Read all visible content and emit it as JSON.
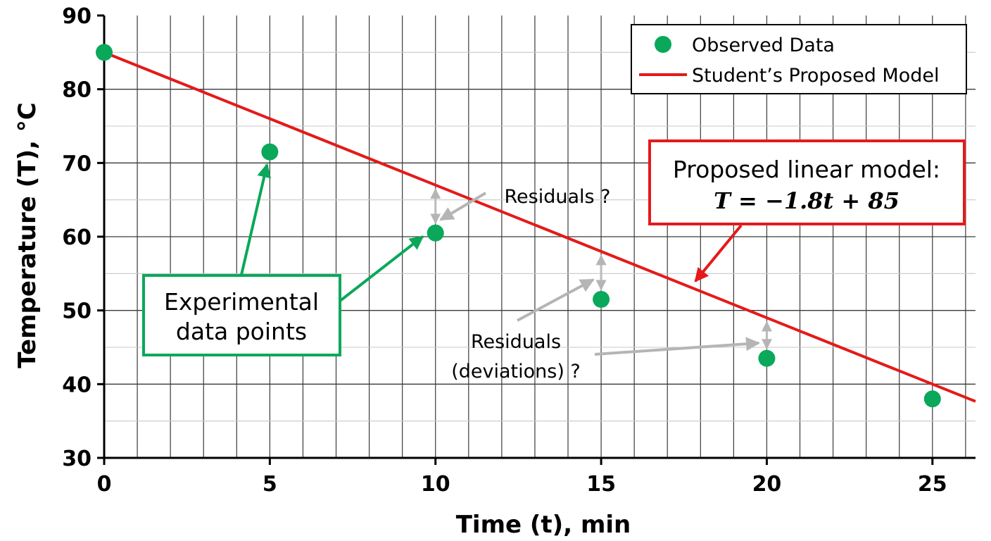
{
  "chart_data": {
    "type": "scatter",
    "xlabel": "Time (t), min",
    "ylabel": "Temperature (T), °C",
    "xlim": [
      0,
      26.3
    ],
    "ylim": [
      30,
      90
    ],
    "x_ticks": [
      0,
      5,
      10,
      15,
      20,
      25
    ],
    "y_ticks": [
      30,
      40,
      50,
      60,
      70,
      80,
      90
    ],
    "grid": true,
    "legend_position": "top-right",
    "series": [
      {
        "name": "Observed Data",
        "type": "scatter",
        "color": "#0aa85a",
        "x": [
          0,
          5,
          10,
          15,
          20,
          25
        ],
        "y": [
          85,
          71.5,
          60.5,
          51.5,
          43.5,
          38
        ]
      },
      {
        "name": "Student’s Proposed Model",
        "type": "line",
        "color": "#e41a1a",
        "slope": -1.8,
        "intercept": 85
      }
    ],
    "annotations": {
      "model_box": {
        "line1": "Proposed linear model:",
        "equation": "T = −1.8t + 85",
        "color": "#e41a1a",
        "arrow_target": [
          17.8,
          53
        ]
      },
      "data_box": {
        "line1": "Experimental",
        "line2": "data points",
        "color": "#0aa85a",
        "arrow_targets": [
          [
            5,
            71.5
          ],
          [
            10,
            60.5
          ]
        ]
      },
      "residuals_top": {
        "text": "Residuals ?",
        "color": "#bbbbbb",
        "points": [
          10
        ]
      },
      "residuals_bottom": {
        "line1": "Residuals",
        "line2": "(deviations) ?",
        "color": "#bbbbbb",
        "points": [
          15,
          20
        ]
      }
    }
  }
}
